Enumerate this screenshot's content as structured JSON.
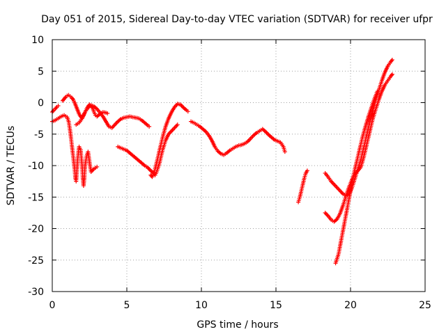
{
  "chart_data": {
    "type": "scatter",
    "title": "Day 051 of 2015, Sidereal Day-to-day VTEC variation (SDTVAR) for receiver ufpr",
    "xlabel": "GPS time / hours",
    "ylabel": "SDTVAR / TECUs",
    "xlim": [
      0,
      25
    ],
    "ylim": [
      -30,
      10
    ],
    "xticks": [
      0,
      5,
      10,
      15,
      20,
      25
    ],
    "yticks": [
      -30,
      -25,
      -20,
      -15,
      -10,
      -5,
      0,
      5,
      10
    ],
    "grid": true,
    "legend": "none",
    "marker": "plus",
    "color": "#ff0000",
    "series": [
      {
        "points": [
          [
            0,
            -3.0
          ],
          [
            0.2,
            -2.8
          ],
          [
            0.4,
            -2.5
          ],
          [
            0.6,
            -2.2
          ],
          [
            0.8,
            -2.0
          ],
          [
            1.0,
            -2.3
          ],
          [
            1.1,
            -3.0
          ],
          [
            1.2,
            -4.5
          ],
          [
            1.3,
            -6.5
          ],
          [
            1.4,
            -8.5
          ],
          [
            1.5,
            -10.5
          ],
          [
            1.55,
            -12.0
          ],
          [
            1.6,
            -12.5
          ],
          [
            1.65,
            -11.0
          ],
          [
            1.7,
            -9.0
          ],
          [
            1.8,
            -7.0
          ],
          [
            1.9,
            -7.5
          ],
          [
            2.0,
            -10.0
          ],
          [
            2.05,
            -12.0
          ],
          [
            2.1,
            -13.2
          ],
          [
            2.15,
            -12.0
          ],
          [
            2.2,
            -10.0
          ],
          [
            2.3,
            -8.5
          ],
          [
            2.4,
            -7.8
          ],
          [
            2.5,
            -9.5
          ],
          [
            2.6,
            -11.0
          ],
          [
            2.8,
            -10.5
          ],
          [
            3.0,
            -10.2
          ]
        ]
      },
      {
        "points": [
          [
            0,
            -1.5
          ],
          [
            0.1,
            -1.2
          ],
          [
            0.2,
            -1.0
          ],
          [
            0.3,
            -0.7
          ],
          [
            0.4,
            -0.5
          ]
        ]
      },
      {
        "points": [
          [
            0.7,
            0.3
          ],
          [
            0.8,
            0.6
          ],
          [
            0.9,
            0.9
          ],
          [
            1.0,
            1.1
          ],
          [
            1.1,
            1.2
          ],
          [
            1.2,
            1.0
          ],
          [
            1.3,
            0.8
          ],
          [
            1.4,
            0.5
          ],
          [
            1.5,
            0.0
          ],
          [
            1.6,
            -0.6
          ],
          [
            1.7,
            -1.2
          ],
          [
            1.8,
            -1.8
          ],
          [
            1.9,
            -2.2
          ],
          [
            2.0,
            -2.5
          ],
          [
            2.1,
            -2.0
          ],
          [
            2.2,
            -1.5
          ],
          [
            2.3,
            -1.0
          ],
          [
            2.4,
            -0.6
          ],
          [
            2.5,
            -0.3
          ],
          [
            2.6,
            -0.5
          ],
          [
            2.7,
            -0.8
          ],
          [
            2.8,
            -1.5
          ],
          [
            2.9,
            -2.0
          ],
          [
            3.0,
            -2.2
          ],
          [
            3.2,
            -1.8
          ],
          [
            3.4,
            -1.5
          ],
          [
            3.6,
            -1.6
          ],
          [
            3.7,
            -1.7
          ]
        ]
      },
      {
        "points": [
          [
            1.6,
            -3.5
          ],
          [
            1.8,
            -3.2
          ],
          [
            2.0,
            -2.5
          ],
          [
            2.2,
            -1.5
          ],
          [
            2.4,
            -0.8
          ],
          [
            2.6,
            -0.4
          ],
          [
            2.8,
            -0.6
          ],
          [
            3.0,
            -1.0
          ],
          [
            3.2,
            -1.6
          ],
          [
            3.4,
            -2.2
          ],
          [
            3.6,
            -3.0
          ],
          [
            3.8,
            -3.8
          ],
          [
            4.0,
            -4.0
          ],
          [
            4.2,
            -3.5
          ],
          [
            4.4,
            -3.0
          ],
          [
            4.6,
            -2.6
          ],
          [
            4.8,
            -2.4
          ],
          [
            5.0,
            -2.3
          ],
          [
            5.2,
            -2.2
          ],
          [
            5.4,
            -2.3
          ],
          [
            5.6,
            -2.4
          ],
          [
            5.8,
            -2.5
          ],
          [
            6.0,
            -2.8
          ],
          [
            6.2,
            -3.2
          ],
          [
            6.4,
            -3.6
          ],
          [
            6.5,
            -3.8
          ]
        ]
      },
      {
        "points": [
          [
            4.4,
            -7.0
          ],
          [
            4.6,
            -7.2
          ],
          [
            4.8,
            -7.4
          ],
          [
            5.0,
            -7.6
          ],
          [
            5.2,
            -8.0
          ],
          [
            5.4,
            -8.4
          ],
          [
            5.6,
            -8.8
          ],
          [
            5.8,
            -9.2
          ],
          [
            6.0,
            -9.6
          ],
          [
            6.2,
            -10.0
          ],
          [
            6.4,
            -10.3
          ],
          [
            6.6,
            -10.8
          ],
          [
            6.8,
            -11.2
          ],
          [
            6.9,
            -11.5
          ],
          [
            7.0,
            -11.0
          ],
          [
            7.2,
            -9.5
          ],
          [
            7.4,
            -7.5
          ],
          [
            7.6,
            -6.0
          ],
          [
            7.8,
            -5.0
          ],
          [
            8.0,
            -4.5
          ],
          [
            8.2,
            -4.0
          ],
          [
            8.4,
            -3.5
          ]
        ]
      },
      {
        "points": [
          [
            6.6,
            -11.5
          ],
          [
            6.7,
            -11.8
          ],
          [
            6.8,
            -11.3
          ],
          [
            6.9,
            -10.5
          ],
          [
            7.0,
            -9.5
          ],
          [
            7.2,
            -7.5
          ],
          [
            7.4,
            -5.5
          ],
          [
            7.6,
            -3.8
          ],
          [
            7.8,
            -2.5
          ],
          [
            8.0,
            -1.5
          ],
          [
            8.2,
            -0.7
          ],
          [
            8.4,
            -0.2
          ],
          [
            8.6,
            -0.3
          ],
          [
            8.8,
            -0.8
          ],
          [
            9.0,
            -1.2
          ],
          [
            9.1,
            -1.4
          ]
        ]
      },
      {
        "points": [
          [
            9.3,
            -3.0
          ],
          [
            9.5,
            -3.2
          ],
          [
            9.7,
            -3.5
          ],
          [
            9.9,
            -3.8
          ],
          [
            10.1,
            -4.2
          ],
          [
            10.3,
            -4.6
          ],
          [
            10.5,
            -5.2
          ],
          [
            10.7,
            -6.0
          ],
          [
            10.9,
            -7.0
          ],
          [
            11.1,
            -7.7
          ],
          [
            11.3,
            -8.1
          ],
          [
            11.5,
            -8.3
          ],
          [
            11.7,
            -8.0
          ],
          [
            11.9,
            -7.6
          ],
          [
            12.1,
            -7.3
          ],
          [
            12.3,
            -7.0
          ],
          [
            12.5,
            -6.8
          ],
          [
            12.7,
            -6.7
          ],
          [
            12.9,
            -6.5
          ],
          [
            13.1,
            -6.2
          ],
          [
            13.3,
            -5.7
          ],
          [
            13.5,
            -5.2
          ],
          [
            13.7,
            -4.8
          ],
          [
            13.9,
            -4.5
          ],
          [
            14.1,
            -4.2
          ],
          [
            14.3,
            -4.6
          ],
          [
            14.5,
            -5.1
          ],
          [
            14.7,
            -5.5
          ],
          [
            14.9,
            -5.9
          ],
          [
            15.1,
            -6.1
          ],
          [
            15.3,
            -6.3
          ],
          [
            15.5,
            -7.0
          ],
          [
            15.6,
            -7.8
          ]
        ]
      },
      {
        "points": [
          [
            16.5,
            -15.8
          ],
          [
            16.6,
            -15.0
          ],
          [
            16.7,
            -14.0
          ],
          [
            16.8,
            -13.0
          ],
          [
            16.9,
            -12.0
          ],
          [
            17.0,
            -11.2
          ],
          [
            17.1,
            -10.8
          ]
        ]
      },
      {
        "points": [
          [
            18.3,
            -11.2
          ],
          [
            18.5,
            -11.8
          ],
          [
            18.7,
            -12.5
          ],
          [
            18.9,
            -13.0
          ],
          [
            19.1,
            -13.5
          ],
          [
            19.3,
            -14.0
          ],
          [
            19.5,
            -14.5
          ],
          [
            19.7,
            -14.8
          ],
          [
            19.9,
            -14.5
          ],
          [
            20.1,
            -13.5
          ],
          [
            20.3,
            -12.0
          ],
          [
            20.5,
            -10.5
          ],
          [
            20.7,
            -9.0
          ],
          [
            20.9,
            -7.0
          ],
          [
            21.1,
            -5.0
          ],
          [
            21.3,
            -3.0
          ],
          [
            21.5,
            -1.2
          ],
          [
            21.7,
            0.5
          ],
          [
            21.9,
            2.0
          ],
          [
            22.1,
            3.5
          ],
          [
            22.3,
            4.8
          ],
          [
            22.5,
            5.8
          ],
          [
            22.7,
            6.5
          ],
          [
            22.8,
            6.8
          ]
        ]
      },
      {
        "points": [
          [
            18.3,
            -17.5
          ],
          [
            18.5,
            -18.0
          ],
          [
            18.7,
            -18.6
          ],
          [
            18.9,
            -18.9
          ],
          [
            19.1,
            -18.5
          ],
          [
            19.3,
            -17.6
          ],
          [
            19.5,
            -16.3
          ],
          [
            19.7,
            -14.8
          ],
          [
            19.9,
            -13.4
          ],
          [
            20.1,
            -12.2
          ],
          [
            20.3,
            -11.3
          ],
          [
            20.5,
            -10.8
          ],
          [
            20.7,
            -10.2
          ],
          [
            20.9,
            -8.5
          ],
          [
            21.1,
            -6.5
          ],
          [
            21.3,
            -4.5
          ],
          [
            21.5,
            -2.5
          ],
          [
            21.7,
            -1.0
          ],
          [
            21.9,
            0.5
          ],
          [
            22.1,
            1.8
          ],
          [
            22.3,
            2.8
          ],
          [
            22.5,
            3.5
          ],
          [
            22.7,
            4.2
          ],
          [
            22.8,
            4.5
          ]
        ]
      },
      {
        "points": [
          [
            19.0,
            -25.5
          ],
          [
            19.2,
            -24.0
          ],
          [
            19.4,
            -21.5
          ],
          [
            19.6,
            -19.0
          ],
          [
            19.8,
            -16.5
          ],
          [
            20.0,
            -14.0
          ],
          [
            20.2,
            -11.5
          ],
          [
            20.4,
            -9.5
          ],
          [
            20.6,
            -7.5
          ],
          [
            20.8,
            -5.5
          ],
          [
            21.0,
            -3.8
          ],
          [
            21.2,
            -2.2
          ],
          [
            21.4,
            -0.8
          ],
          [
            21.6,
            0.6
          ],
          [
            21.8,
            1.8
          ]
        ]
      }
    ]
  }
}
